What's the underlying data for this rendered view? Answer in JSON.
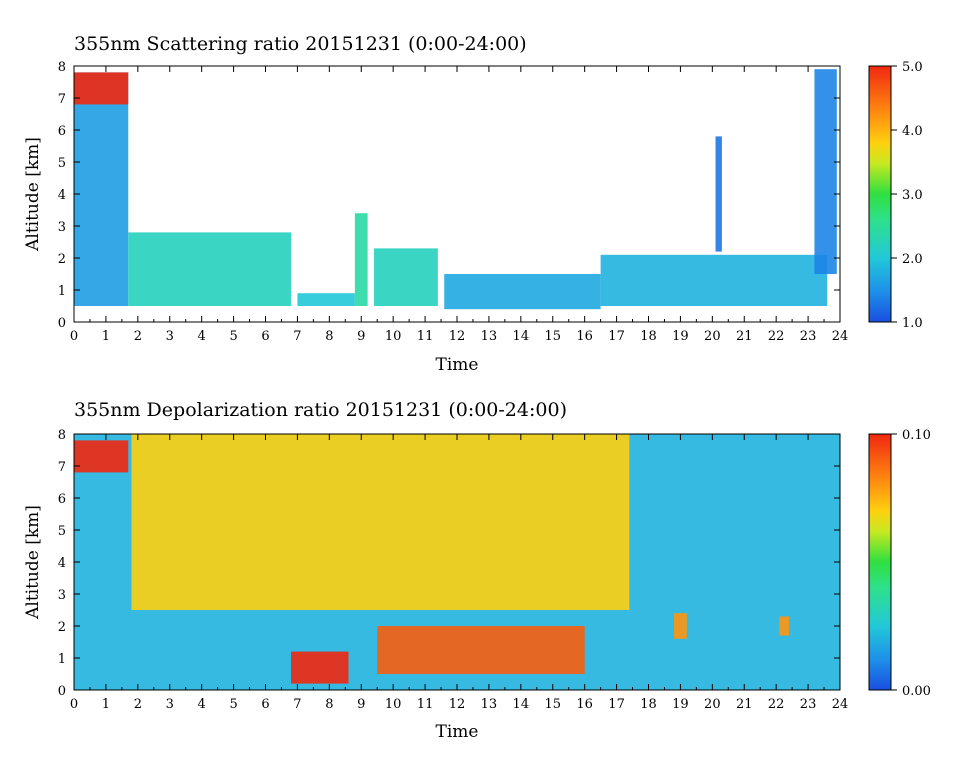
{
  "chart_data": [
    {
      "type": "heatmap",
      "title": "355nm Scattering ratio  20151231 (0:00-24:00)",
      "xlabel": "Time",
      "ylabel": "Altitude [km]",
      "xlim": [
        0,
        24
      ],
      "ylim": [
        0,
        8
      ],
      "x_ticks": [
        "0",
        "1",
        "2",
        "3",
        "4",
        "5",
        "6",
        "7",
        "8",
        "9",
        "10",
        "11",
        "12",
        "13",
        "14",
        "15",
        "16",
        "17",
        "18",
        "19",
        "20",
        "21",
        "22",
        "23",
        "24"
      ],
      "y_ticks": [
        "0",
        "1",
        "2",
        "3",
        "4",
        "5",
        "6",
        "7",
        "8"
      ],
      "colorbar": {
        "min": 1.0,
        "max": 5.0,
        "ticks": [
          "1.0",
          "2.0",
          "3.0",
          "4.0",
          "5.0"
        ]
      },
      "features": [
        {
          "x": [
            0.0,
            1.7
          ],
          "y": [
            0.5,
            7.8
          ],
          "value": 1.6
        },
        {
          "x": [
            0.0,
            1.7
          ],
          "y": [
            6.8,
            7.8
          ],
          "value": 5.0
        },
        {
          "x": [
            1.7,
            6.8
          ],
          "y": [
            0.5,
            2.8
          ],
          "value": 2.2
        },
        {
          "x": [
            7.0,
            8.8
          ],
          "y": [
            0.5,
            0.9
          ],
          "value": 2.0
        },
        {
          "x": [
            8.8,
            9.2
          ],
          "y": [
            0.5,
            3.4
          ],
          "value": 2.4
        },
        {
          "x": [
            9.4,
            11.4
          ],
          "y": [
            0.5,
            2.3
          ],
          "value": 2.2
        },
        {
          "x": [
            11.6,
            16.5
          ],
          "y": [
            0.4,
            1.5
          ],
          "value": 1.7
        },
        {
          "x": [
            16.5,
            23.6
          ],
          "y": [
            0.5,
            2.1
          ],
          "value": 1.8
        },
        {
          "x": [
            20.1,
            20.3
          ],
          "y": [
            2.2,
            5.8
          ],
          "value": 1.3
        },
        {
          "x": [
            23.2,
            23.9
          ],
          "y": [
            1.5,
            7.9
          ],
          "value": 1.4
        }
      ]
    },
    {
      "type": "heatmap",
      "title": "355nm Depolarization ratio  20151231 (0:00-24:00)",
      "xlabel": "Time",
      "ylabel": "Altitude [km]",
      "xlim": [
        0,
        24
      ],
      "ylim": [
        0,
        8
      ],
      "x_ticks": [
        "0",
        "1",
        "2",
        "3",
        "4",
        "5",
        "6",
        "7",
        "8",
        "9",
        "10",
        "11",
        "12",
        "13",
        "14",
        "15",
        "16",
        "17",
        "18",
        "19",
        "20",
        "21",
        "22",
        "23",
        "24"
      ],
      "y_ticks": [
        "0",
        "1",
        "2",
        "3",
        "4",
        "5",
        "6",
        "7",
        "8"
      ],
      "colorbar": {
        "min": 0.0,
        "max": 0.1,
        "ticks": [
          "0.00",
          "0.10"
        ]
      },
      "features": [
        {
          "x": [
            0.0,
            24.0
          ],
          "y": [
            0.0,
            8.0
          ],
          "value": 0.02
        },
        {
          "x": [
            0.0,
            1.7
          ],
          "y": [
            6.8,
            7.8
          ],
          "value": 0.1
        },
        {
          "x": [
            1.8,
            17.4
          ],
          "y": [
            2.5,
            8.0
          ],
          "value": 0.07
        },
        {
          "x": [
            6.8,
            8.6
          ],
          "y": [
            0.2,
            1.2
          ],
          "value": 0.1
        },
        {
          "x": [
            9.5,
            16.0
          ],
          "y": [
            0.5,
            2.0
          ],
          "value": 0.09
        },
        {
          "x": [
            18.8,
            19.2
          ],
          "y": [
            1.6,
            2.4
          ],
          "value": 0.08
        },
        {
          "x": [
            22.1,
            22.4
          ],
          "y": [
            1.7,
            2.3
          ],
          "value": 0.08
        }
      ]
    }
  ]
}
